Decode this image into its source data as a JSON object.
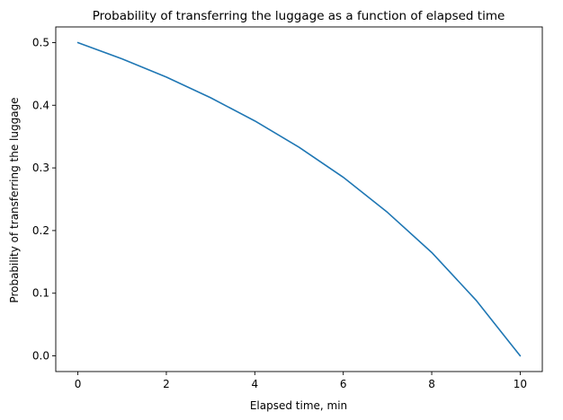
{
  "chart_data": {
    "type": "line",
    "title": "Probability of transferring the luggage as a function of elapsed time",
    "xlabel": "Elapsed time, min",
    "ylabel": "Probability of transferring the luggage",
    "xlim": [
      -0.5,
      10.5
    ],
    "ylim": [
      -0.025,
      0.525
    ],
    "xticks": [
      0,
      2,
      4,
      6,
      8,
      10
    ],
    "xtick_labels": [
      "0",
      "2",
      "4",
      "6",
      "8",
      "10"
    ],
    "yticks": [
      0.0,
      0.1,
      0.2,
      0.3,
      0.4,
      0.5
    ],
    "ytick_labels": [
      "0.0",
      "0.1",
      "0.2",
      "0.3",
      "0.4",
      "0.5"
    ],
    "grid": false,
    "series": [
      {
        "color": "#1f77b4",
        "x": [
          0,
          1,
          2,
          3,
          4,
          5,
          6,
          7,
          8,
          9,
          10
        ],
        "y": [
          0.5,
          0.474,
          0.445,
          0.412,
          0.375,
          0.333,
          0.285,
          0.229,
          0.165,
          0.089,
          0.0
        ]
      }
    ]
  }
}
